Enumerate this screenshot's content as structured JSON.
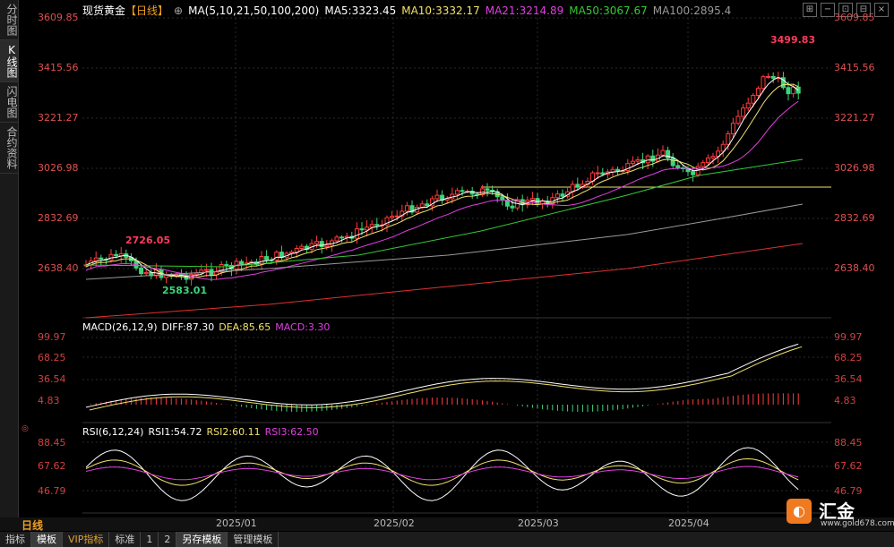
{
  "sidebar": {
    "tabs": [
      "分时图",
      "K线图",
      "闪电图",
      "合约资料"
    ],
    "active": 1
  },
  "header": {
    "symbol": "现货黄金",
    "period_tag": "【日线】",
    "ma_params": "MA(5,10,21,50,100,200)",
    "ma5": "MA5:3323.45",
    "ma10": "MA10:3332.17",
    "ma21": "MA21:3214.89",
    "ma50": "MA50:3067.67",
    "ma100": "MA100:2895.4"
  },
  "main_axis": [
    "3609.85",
    "3415.56",
    "3221.27",
    "3026.98",
    "2832.69",
    "2638.40"
  ],
  "annotations": {
    "high": "3499.83",
    "low": "2583.01",
    "early_high": "2726.05"
  },
  "macd": {
    "label": "MACD(26,12,9)",
    "diff": "DIFF:87.30",
    "dea": "DEA:85.65",
    "macd": "MACD:3.30",
    "axis": [
      "99.97",
      "68.25",
      "36.54",
      "4.83"
    ]
  },
  "rsi": {
    "label": "RSI(6,12,24)",
    "rsi1": "RSI1:54.72",
    "rsi2": "RSI2:60.11",
    "rsi3": "RSI3:62.50",
    "axis": [
      "88.45",
      "67.62",
      "46.79"
    ]
  },
  "period": "日线",
  "dates": [
    "2025/01",
    "2025/02",
    "2025/03",
    "2025/04"
  ],
  "tabs": [
    "指标",
    "模板",
    "VIP指标",
    "标准",
    "1",
    "2",
    "另存模板",
    "管理模板"
  ],
  "logo": {
    "name": "汇金",
    "url": "www.gold678.com"
  },
  "colors": {
    "up": "#ff3b3b",
    "down": "#3cd67a",
    "ma5": "#ffffff",
    "ma10": "#f3e26a",
    "ma21": "#e040e0",
    "ma50": "#35c935",
    "ma100": "#9a9a9a",
    "ma200": "#e03030"
  }
}
